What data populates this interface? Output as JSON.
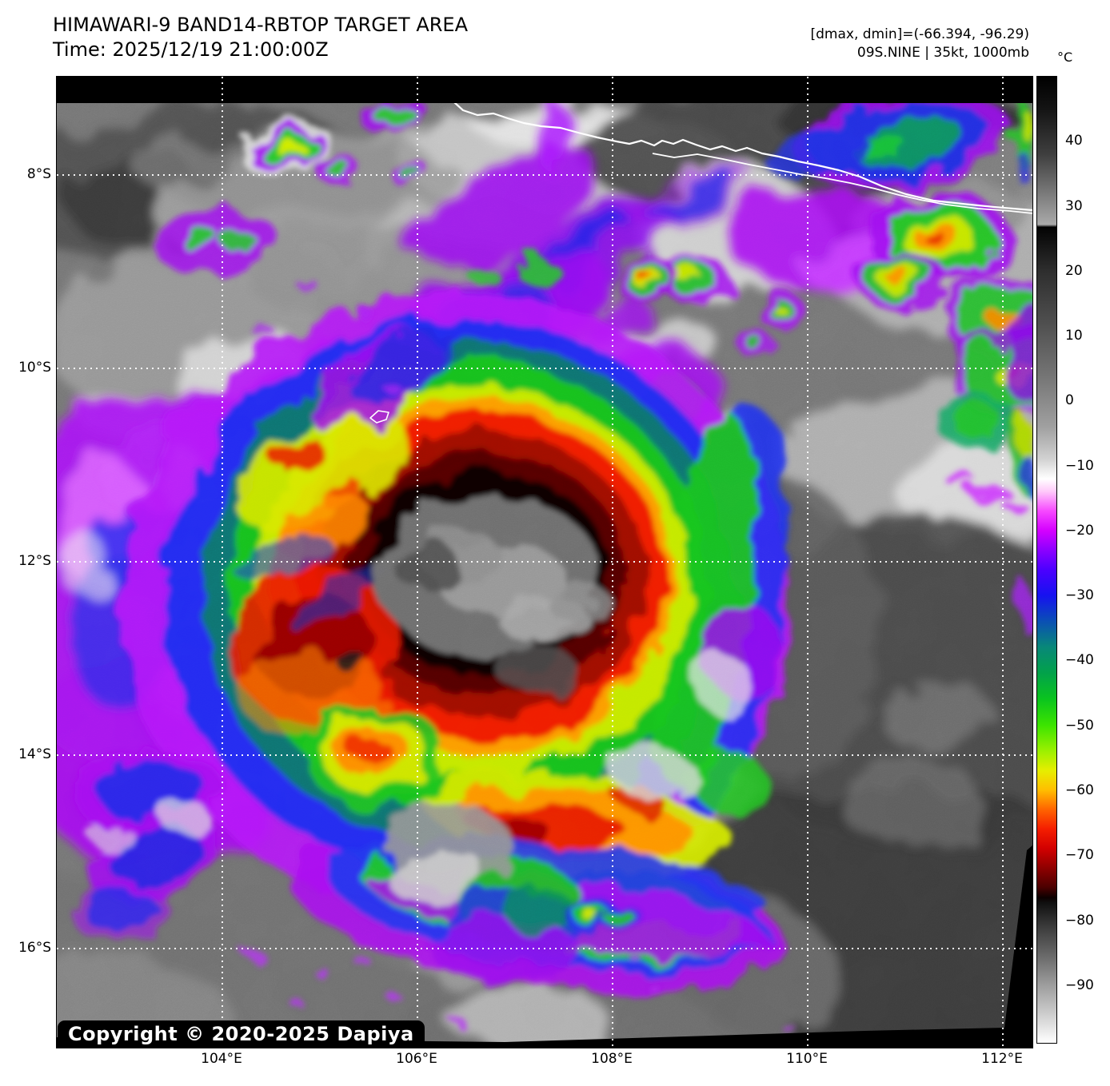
{
  "header": {
    "title": "HIMAWARI-9 BAND14-RBTOP TARGET AREA",
    "time": "Time: 2025/12/19 21:00:00Z",
    "annotation_line1": "[dmax, dmin]=(-66.394, -96.29)",
    "annotation_line2": "09S.NINE | 35kt, 1000mb"
  },
  "axes": {
    "lat_ticks": [
      {
        "value": 8,
        "label": "8°S"
      },
      {
        "value": 10,
        "label": "10°S"
      },
      {
        "value": 12,
        "label": "12°S"
      },
      {
        "value": 14,
        "label": "14°S"
      },
      {
        "value": 16,
        "label": "16°S"
      }
    ],
    "lon_ticks": [
      {
        "value": 104,
        "label": "104°E"
      },
      {
        "value": 106,
        "label": "106°E"
      },
      {
        "value": 108,
        "label": "108°E"
      },
      {
        "value": 110,
        "label": "110°E"
      },
      {
        "value": 112,
        "label": "112°E"
      }
    ]
  },
  "colorbar": {
    "unit": "°C",
    "ticks": [
      {
        "value": 40,
        "label": "40"
      },
      {
        "value": 30,
        "label": "30"
      },
      {
        "value": 20,
        "label": "20"
      },
      {
        "value": 10,
        "label": "10"
      },
      {
        "value": 0,
        "label": "0"
      },
      {
        "value": -10,
        "label": "−10"
      },
      {
        "value": -20,
        "label": "−20"
      },
      {
        "value": -30,
        "label": "−30"
      },
      {
        "value": -40,
        "label": "−40"
      },
      {
        "value": -50,
        "label": "−50"
      },
      {
        "value": -60,
        "label": "−60"
      },
      {
        "value": -70,
        "label": "−70"
      },
      {
        "value": -80,
        "label": "−80"
      },
      {
        "value": -90,
        "label": "−90"
      }
    ],
    "stops": [
      {
        "v": 50,
        "c": "#000000"
      },
      {
        "v": 45,
        "c": "#141414"
      },
      {
        "v": 38,
        "c": "#3f3f3f"
      },
      {
        "v": 32,
        "c": "#7a7a7a"
      },
      {
        "v": 27.2,
        "c": "#aaaaaa"
      },
      {
        "v": 26.8,
        "c": "#000000"
      },
      {
        "v": 26.4,
        "c": "#060606"
      },
      {
        "v": 20,
        "c": "#2e2e2e"
      },
      {
        "v": 12,
        "c": "#4f4f4f"
      },
      {
        "v": 4,
        "c": "#747474"
      },
      {
        "v": -4,
        "c": "#a0a0a0"
      },
      {
        "v": -9,
        "c": "#d2d2d2"
      },
      {
        "v": -12,
        "c": "#ffffff"
      },
      {
        "v": -14,
        "c": "#ffc8fa"
      },
      {
        "v": -17,
        "c": "#f648ff"
      },
      {
        "v": -20,
        "c": "#d400ff"
      },
      {
        "v": -23,
        "c": "#8c00ff"
      },
      {
        "v": -26,
        "c": "#4c00ff"
      },
      {
        "v": -30,
        "c": "#1612f0"
      },
      {
        "v": -34,
        "c": "#0a50b4"
      },
      {
        "v": -38,
        "c": "#088878"
      },
      {
        "v": -42,
        "c": "#02a24a"
      },
      {
        "v": -46,
        "c": "#0ac41e"
      },
      {
        "v": -50,
        "c": "#3ce400"
      },
      {
        "v": -54,
        "c": "#9cf000"
      },
      {
        "v": -57,
        "c": "#e6ee00"
      },
      {
        "v": -60,
        "c": "#ffbe00"
      },
      {
        "v": -63,
        "c": "#ff6400"
      },
      {
        "v": -66,
        "c": "#f51e00"
      },
      {
        "v": -69,
        "c": "#d20000"
      },
      {
        "v": -72,
        "c": "#8f0000"
      },
      {
        "v": -75,
        "c": "#4c0000"
      },
      {
        "v": -76.6,
        "c": "#0c0000"
      },
      {
        "v": -77.4,
        "c": "#101010"
      },
      {
        "v": -81,
        "c": "#3a3a3a"
      },
      {
        "v": -86,
        "c": "#6e6e6e"
      },
      {
        "v": -90,
        "c": "#9c9c9c"
      },
      {
        "v": -95,
        "c": "#d2d2d2"
      },
      {
        "v": -99,
        "c": "#ffffff"
      }
    ]
  },
  "map": {
    "copyright": "Copyright © 2020-2025 Dapiya"
  }
}
